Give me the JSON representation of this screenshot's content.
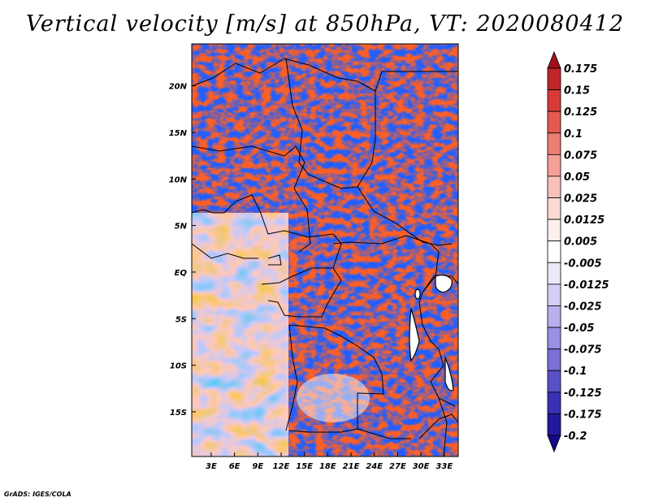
{
  "title": "Vertical velocity [m/s] at 850hPa, VT: 2020080412",
  "credit": "GrADS: IGES/COLA",
  "map": {
    "lat_labels": [
      "20N",
      "15N",
      "10N",
      "5N",
      "EQ",
      "5S",
      "10S",
      "15S"
    ],
    "lat_values": [
      20,
      15,
      10,
      5,
      0,
      -5,
      -10,
      -15
    ],
    "lon_labels": [
      "3E",
      "6E",
      "9E",
      "12E",
      "15E",
      "18E",
      "21E",
      "24E",
      "27E",
      "30E",
      "33E"
    ],
    "lon_values": [
      3,
      6,
      9,
      12,
      15,
      18,
      21,
      24,
      27,
      30,
      33
    ],
    "lon_range": [
      0.5,
      34.8
    ],
    "lat_range": [
      -19.8,
      24.5
    ]
  },
  "colorbar": {
    "labels": [
      "0.175",
      "0.15",
      "0.125",
      "0.1",
      "0.075",
      "0.05",
      "0.025",
      "0.0125",
      "0.005",
      "-0.005",
      "-0.0125",
      "-0.025",
      "-0.05",
      "-0.075",
      "-0.1",
      "-0.125",
      "-0.175",
      "-0.2"
    ],
    "colors": [
      "#a01218",
      "#c0262a",
      "#d83a38",
      "#e45a52",
      "#ec7e74",
      "#f4a098",
      "#f8c0b8",
      "#fbdad4",
      "#fdf0ec",
      "#ffffff",
      "#ece8f8",
      "#d4cef4",
      "#b8b0ec",
      "#9a90e4",
      "#7a70d8",
      "#5a50c8",
      "#3a30b4",
      "#24189c",
      "#14088a"
    ]
  },
  "colors": {
    "positive": "#d83a38",
    "negative": "#5a50c8",
    "coast": "#000000"
  }
}
